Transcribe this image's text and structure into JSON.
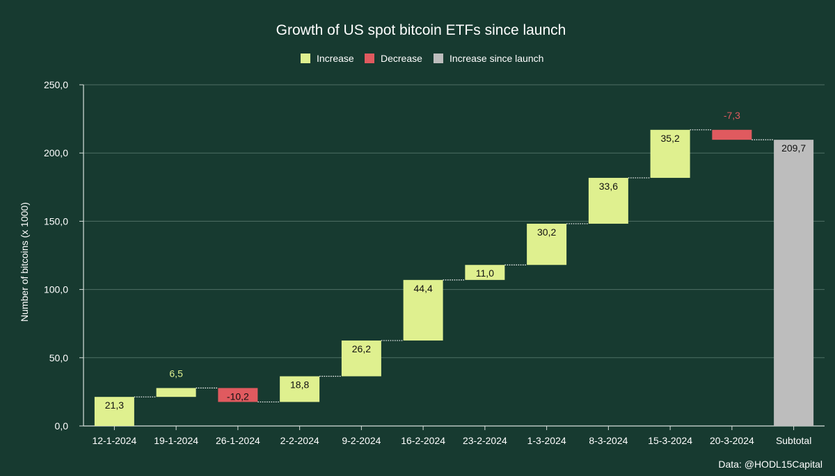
{
  "chart_data": {
    "type": "bar",
    "subtype": "waterfall",
    "title": "Growth of US spot bitcoin ETFs since launch",
    "ylabel": "Number of bitcoins (x 1000)",
    "xlabel": "",
    "ylim": [
      0,
      250
    ],
    "yticks": [
      "0,0",
      "50,0",
      "100,0",
      "150,0",
      "200,0",
      "250,0"
    ],
    "ytick_values": [
      0,
      50,
      100,
      150,
      200,
      250
    ],
    "grid": true,
    "legend_position": "top-center",
    "legend": [
      {
        "label": "Increase",
        "color": "#dff08f"
      },
      {
        "label": "Decrease",
        "color": "#e05a5f"
      },
      {
        "label": "Increase since launch",
        "color": "#bdbdbd"
      }
    ],
    "categories": [
      "12-1-2024",
      "19-1-2024",
      "26-1-2024",
      "2-2-2024",
      "9-2-2024",
      "16-2-2024",
      "23-2-2024",
      "1-3-2024",
      "8-3-2024",
      "15-3-2024",
      "20-3-2024",
      "Subtotal"
    ],
    "values": [
      21.3,
      6.5,
      -10.2,
      18.8,
      26.2,
      44.4,
      11.0,
      30.2,
      33.6,
      35.2,
      -7.3,
      209.7
    ],
    "value_labels": [
      "21,3",
      "6,5",
      "-10,2",
      "18,8",
      "26,2",
      "44,4",
      "11,0",
      "30,2",
      "33,6",
      "35,2",
      "-7,3",
      "209,7"
    ],
    "kinds": [
      "increase",
      "increase",
      "decrease",
      "increase",
      "increase",
      "increase",
      "increase",
      "increase",
      "increase",
      "increase",
      "decrease",
      "total"
    ],
    "source": "Data: @HODL15Capital"
  },
  "colors": {
    "background": "#173a30",
    "grid": "#4f6f64",
    "axis": "#d8e0dc",
    "text": "#ffffff",
    "increase": "#dff08f",
    "decrease": "#e05a5f",
    "total": "#bdbdbd"
  }
}
